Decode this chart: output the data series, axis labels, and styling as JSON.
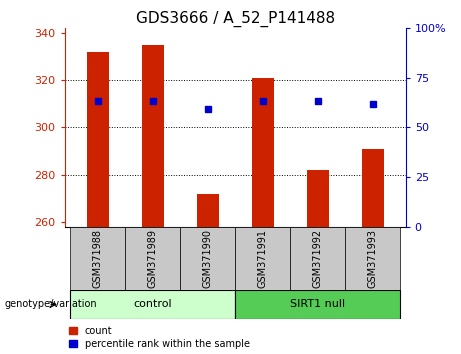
{
  "title": "GDS3666 / A_52_P141488",
  "samples": [
    "GSM371988",
    "GSM371989",
    "GSM371990",
    "GSM371991",
    "GSM371992",
    "GSM371993"
  ],
  "counts": [
    332,
    335,
    272,
    321,
    282,
    291
  ],
  "percentile_values": [
    311,
    311,
    308,
    311,
    311,
    310
  ],
  "ylim_left": [
    258,
    342
  ],
  "ylim_right": [
    0,
    100
  ],
  "yticks_left": [
    260,
    280,
    300,
    320,
    340
  ],
  "yticks_right": [
    0,
    25,
    50,
    75,
    100
  ],
  "ytick_labels_right": [
    "0",
    "25",
    "50",
    "75",
    "100%"
  ],
  "baseline": 258,
  "bar_color": "#cc2200",
  "dot_color": "#0000cc",
  "control_label": "control",
  "sirt1_label": "SIRT1 null",
  "control_bg": "#ccffcc",
  "sirt1_bg": "#55cc55",
  "ax_label_color_left": "#cc2200",
  "ax_label_color_right": "#0000cc",
  "legend_count_label": "count",
  "legend_pct_label": "percentile rank within the sample",
  "title_fontsize": 11,
  "tick_fontsize": 8,
  "sample_fontsize": 7,
  "group_fontsize": 8,
  "legend_fontsize": 7,
  "xlabel_area_bg": "#c8c8c8",
  "bar_width": 0.4
}
